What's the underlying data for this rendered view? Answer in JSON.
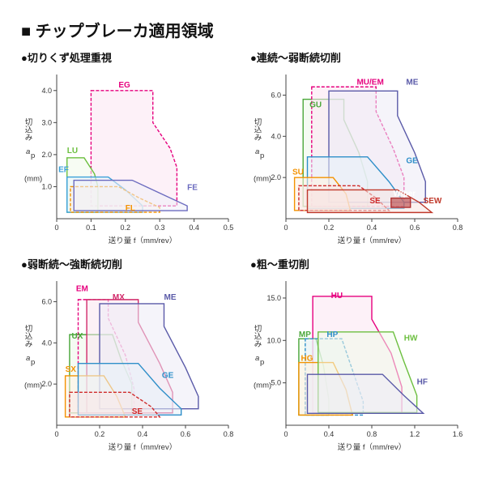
{
  "title": "■ チップブレーカ適用領域",
  "shared": {
    "xlabel": "送り量 f（mm/rev）",
    "ylabel_a": "切込み",
    "ylabel_b": "aₚ",
    "ylabel_c": "(mm)",
    "axis_color": "#444444",
    "tick_fontsize": 9
  },
  "panels": [
    {
      "key": "p1",
      "title": "●切りくず処理重視",
      "xlim": [
        0,
        0.5
      ],
      "xticks": [
        0,
        0.1,
        0.2,
        0.3,
        0.4,
        0.5
      ],
      "ylim": [
        0,
        4.5
      ],
      "yticks": [
        1.0,
        2.0,
        3.0,
        4.0
      ],
      "regions": [
        {
          "id": "EG",
          "label": "EG",
          "color": "#e6007e",
          "fill": "#fbe6f2",
          "dash": "4 2",
          "poly": [
            [
              0.1,
              4.0
            ],
            [
              0.28,
              4.0
            ],
            [
              0.28,
              3.0
            ],
            [
              0.33,
              2.2
            ],
            [
              0.35,
              1.6
            ],
            [
              0.35,
              0.4
            ],
            [
              0.1,
              0.4
            ]
          ],
          "lx": 0.18,
          "ly": 4.1
        },
        {
          "id": "LU",
          "label": "LU",
          "color": "#6cbf3f",
          "fill": "#f0f9ea",
          "dash": "none",
          "poly": [
            [
              0.03,
              1.9
            ],
            [
              0.08,
              1.9
            ],
            [
              0.11,
              1.4
            ],
            [
              0.12,
              1.0
            ],
            [
              0.12,
              0.2
            ],
            [
              0.03,
              0.2
            ]
          ],
          "lx": 0.03,
          "ly": 2.05
        },
        {
          "id": "EF",
          "label": "EF",
          "color": "#3aa0d8",
          "fill": "#e9f5fb",
          "dash": "none",
          "poly": [
            [
              0.03,
              1.3
            ],
            [
              0.15,
              1.3
            ],
            [
              0.2,
              0.9
            ],
            [
              0.25,
              0.4
            ],
            [
              0.25,
              0.2
            ],
            [
              0.03,
              0.2
            ]
          ],
          "lx": 0.005,
          "ly": 1.45
        },
        {
          "id": "FL",
          "label": "FL",
          "color": "#f39200",
          "fill": "#fff4e5",
          "dash": "4 2",
          "poly": [
            [
              0.04,
              1.0
            ],
            [
              0.18,
              1.0
            ],
            [
              0.24,
              0.65
            ],
            [
              0.3,
              0.35
            ],
            [
              0.3,
              0.2
            ],
            [
              0.04,
              0.2
            ]
          ],
          "lx": 0.2,
          "ly": 0.25
        },
        {
          "id": "FE",
          "label": "FE",
          "color": "#6b6bbf",
          "fill": "#eeeef8",
          "dash": "none",
          "poly": [
            [
              0.05,
              1.2
            ],
            [
              0.22,
              1.2
            ],
            [
              0.3,
              0.8
            ],
            [
              0.38,
              0.4
            ],
            [
              0.38,
              0.25
            ],
            [
              0.05,
              0.25
            ]
          ],
          "lx": 0.38,
          "ly": 0.9
        }
      ]
    },
    {
      "key": "p2",
      "title": "●連続～弱断続切削",
      "xlim": [
        0,
        0.8
      ],
      "xticks": [
        0,
        0.2,
        0.4,
        0.6,
        0.8
      ],
      "ylim": [
        0,
        7.0
      ],
      "yticks": [
        2.0,
        4.0,
        6.0
      ],
      "regions": [
        {
          "id": "GU",
          "label": "GU",
          "color": "#4aa73a",
          "fill": "#edf7ea",
          "dash": "none",
          "poly": [
            [
              0.08,
              5.8
            ],
            [
              0.27,
              5.8
            ],
            [
              0.27,
              4.8
            ],
            [
              0.34,
              3.2
            ],
            [
              0.38,
              1.8
            ],
            [
              0.38,
              0.6
            ],
            [
              0.08,
              0.6
            ]
          ],
          "lx": 0.11,
          "ly": 5.4
        },
        {
          "id": "MUEM",
          "label": "MU/EM",
          "color": "#e6007e",
          "fill": "#fbe6f2",
          "dash": "4 2",
          "poly": [
            [
              0.12,
              6.4
            ],
            [
              0.42,
              6.4
            ],
            [
              0.42,
              5.2
            ],
            [
              0.5,
              3.4
            ],
            [
              0.55,
              2.0
            ],
            [
              0.55,
              0.6
            ],
            [
              0.12,
              0.6
            ]
          ],
          "lx": 0.33,
          "ly": 6.5
        },
        {
          "id": "ME",
          "label": "ME",
          "color": "#5a5aa8",
          "fill": "#ecebf5",
          "dash": "none",
          "poly": [
            [
              0.2,
              6.2
            ],
            [
              0.52,
              6.2
            ],
            [
              0.52,
              5.0
            ],
            [
              0.6,
              3.2
            ],
            [
              0.65,
              1.8
            ],
            [
              0.65,
              0.8
            ],
            [
              0.2,
              0.8
            ]
          ],
          "lx": 0.56,
          "ly": 6.5
        },
        {
          "id": "GE",
          "label": "GE",
          "color": "#2f8fc9",
          "fill": "#e7f3fa",
          "dash": "none",
          "poly": [
            [
              0.1,
              3.0
            ],
            [
              0.38,
              3.0
            ],
            [
              0.48,
              1.8
            ],
            [
              0.55,
              0.8
            ],
            [
              0.55,
              0.5
            ],
            [
              0.1,
              0.5
            ]
          ],
          "lx": 0.56,
          "ly": 2.7
        },
        {
          "id": "SU",
          "label": "SU",
          "color": "#f39200",
          "fill": "#fff3e1",
          "dash": "none",
          "poly": [
            [
              0.04,
              2.0
            ],
            [
              0.22,
              2.0
            ],
            [
              0.28,
              1.2
            ],
            [
              0.3,
              0.4
            ],
            [
              0.04,
              0.4
            ]
          ],
          "lx": 0.03,
          "ly": 2.15
        },
        {
          "id": "SE",
          "label": "SE",
          "color": "#cf2a2a",
          "fill": "#fae7e7",
          "dash": "4 2",
          "poly": [
            [
              0.06,
              1.6
            ],
            [
              0.34,
              1.6
            ],
            [
              0.42,
              1.0
            ],
            [
              0.48,
              0.4
            ],
            [
              0.06,
              0.4
            ]
          ],
          "lx": 0.39,
          "ly": 0.75
        },
        {
          "id": "SEW",
          "label": "SEW",
          "color": "#c0392b",
          "fill": "#f8e5e2",
          "dash": "none",
          "poly": [
            [
              0.1,
              1.4
            ],
            [
              0.52,
              1.4
            ],
            [
              0.62,
              0.8
            ],
            [
              0.68,
              0.3
            ],
            [
              0.1,
              0.3
            ]
          ],
          "lx": 0.64,
          "ly": 0.75
        },
        {
          "id": "WP",
          "label": "Wiper",
          "color": "#b03030",
          "fill": "#b03030",
          "dash": "none",
          "poly": [
            [
              0.49,
              1.0
            ],
            [
              0.58,
              1.0
            ],
            [
              0.58,
              0.55
            ],
            [
              0.49,
              0.55
            ]
          ],
          "lx": 0.5,
          "ly": 1.1,
          "textfill": "#ffffff"
        }
      ]
    },
    {
      "key": "p3",
      "title": "●弱断続～強断続切削",
      "xlim": [
        0,
        0.8
      ],
      "xticks": [
        0,
        0.2,
        0.4,
        0.6,
        0.8
      ],
      "ylim": [
        0,
        7.0
      ],
      "yticks": [
        2.0,
        4.0,
        6.0
      ],
      "regions": [
        {
          "id": "UX",
          "label": "UX",
          "color": "#4aa73a",
          "fill": "#edf7ea",
          "dash": "none",
          "poly": [
            [
              0.06,
              4.4
            ],
            [
              0.26,
              4.4
            ],
            [
              0.3,
              3.2
            ],
            [
              0.35,
              2.0
            ],
            [
              0.35,
              0.6
            ],
            [
              0.06,
              0.6
            ]
          ],
          "lx": 0.07,
          "ly": 4.2
        },
        {
          "id": "EM",
          "label": "EM",
          "color": "#e6007e",
          "fill": "none",
          "dash": "4 2",
          "poly": [
            [
              0.1,
              6.1
            ],
            [
              0.24,
              6.1
            ],
            [
              0.24,
              5.2
            ],
            [
              0.32,
              3.4
            ],
            [
              0.36,
              1.8
            ],
            [
              0.36,
              0.6
            ],
            [
              0.1,
              0.6
            ]
          ],
          "lx": 0.09,
          "ly": 6.5
        },
        {
          "id": "MX",
          "label": "MX",
          "color": "#d12a6a",
          "fill": "#fae6ee",
          "dash": "none",
          "poly": [
            [
              0.14,
              6.1
            ],
            [
              0.38,
              6.1
            ],
            [
              0.38,
              5.0
            ],
            [
              0.48,
              3.0
            ],
            [
              0.54,
              1.6
            ],
            [
              0.54,
              0.6
            ],
            [
              0.14,
              0.6
            ]
          ],
          "lx": 0.26,
          "ly": 6.1
        },
        {
          "id": "ME2",
          "label": "ME",
          "color": "#5a5aa8",
          "fill": "#ecebf5",
          "dash": "none",
          "poly": [
            [
              0.2,
              5.9
            ],
            [
              0.5,
              5.9
            ],
            [
              0.5,
              4.8
            ],
            [
              0.6,
              2.8
            ],
            [
              0.66,
              1.4
            ],
            [
              0.66,
              0.8
            ],
            [
              0.2,
              0.8
            ]
          ],
          "lx": 0.5,
          "ly": 6.1
        },
        {
          "id": "SX",
          "label": "SX",
          "color": "#f39200",
          "fill": "#fff3e1",
          "dash": "none",
          "poly": [
            [
              0.04,
              2.4
            ],
            [
              0.22,
              2.4
            ],
            [
              0.28,
              1.4
            ],
            [
              0.32,
              0.4
            ],
            [
              0.04,
              0.4
            ]
          ],
          "lx": 0.04,
          "ly": 2.6
        },
        {
          "id": "GE2",
          "label": "GE",
          "color": "#2f8fc9",
          "fill": "#e7f3fa",
          "dash": "none",
          "poly": [
            [
              0.1,
              3.0
            ],
            [
              0.38,
              3.0
            ],
            [
              0.48,
              1.8
            ],
            [
              0.58,
              0.8
            ],
            [
              0.58,
              0.5
            ],
            [
              0.1,
              0.5
            ]
          ],
          "lx": 0.49,
          "ly": 2.3
        },
        {
          "id": "SE2",
          "label": "SE",
          "color": "#cf2a2a",
          "fill": "#fae7e7",
          "dash": "4 2",
          "poly": [
            [
              0.06,
              1.6
            ],
            [
              0.34,
              1.6
            ],
            [
              0.44,
              0.9
            ],
            [
              0.48,
              0.4
            ],
            [
              0.06,
              0.4
            ]
          ],
          "lx": 0.35,
          "ly": 0.55
        }
      ]
    },
    {
      "key": "p4",
      "title": "●粗～重切削",
      "xlim": [
        0,
        1.6
      ],
      "xticks": [
        0,
        0.4,
        0.8,
        1.2,
        1.6
      ],
      "ylim": [
        0,
        17.0
      ],
      "yticks": [
        5.0,
        10.0,
        15.0
      ],
      "regions": [
        {
          "id": "HU",
          "label": "HU",
          "color": "#e6007e",
          "fill": "#fbe6f2",
          "dash": "none",
          "poly": [
            [
              0.25,
              15.2
            ],
            [
              0.8,
              15.2
            ],
            [
              0.8,
              12.5
            ],
            [
              0.98,
              8.5
            ],
            [
              1.08,
              4.5
            ],
            [
              1.08,
              1.5
            ],
            [
              0.25,
              1.5
            ]
          ],
          "lx": 0.42,
          "ly": 15.0
        },
        {
          "id": "MP",
          "label": "MP",
          "color": "#4aa73a",
          "fill": "#edf7ea",
          "dash": "none",
          "poly": [
            [
              0.12,
              10.2
            ],
            [
              0.28,
              10.2
            ],
            [
              0.35,
              7.0
            ],
            [
              0.4,
              3.0
            ],
            [
              0.4,
              1.2
            ],
            [
              0.12,
              1.2
            ]
          ],
          "lx": 0.12,
          "ly": 10.4
        },
        {
          "id": "HP",
          "label": "HP",
          "color": "#2f8fc9",
          "fill": "#e7f3fa",
          "dash": "4 2",
          "poly": [
            [
              0.18,
              10.2
            ],
            [
              0.52,
              10.2
            ],
            [
              0.62,
              6.5
            ],
            [
              0.72,
              2.8
            ],
            [
              0.72,
              1.2
            ],
            [
              0.18,
              1.2
            ]
          ],
          "lx": 0.38,
          "ly": 10.4
        },
        {
          "id": "HG",
          "label": "HG",
          "color": "#f39200",
          "fill": "#fff3e1",
          "dash": "none",
          "poly": [
            [
              0.12,
              7.4
            ],
            [
              0.44,
              7.4
            ],
            [
              0.56,
              4.2
            ],
            [
              0.62,
              1.2
            ],
            [
              0.12,
              1.2
            ]
          ],
          "lx": 0.14,
          "ly": 7.6
        },
        {
          "id": "HW",
          "label": "HW",
          "color": "#6cbf3f",
          "fill": "#f0f9ea",
          "dash": "none",
          "poly": [
            [
              0.3,
              11.0
            ],
            [
              1.0,
              11.0
            ],
            [
              1.1,
              7.5
            ],
            [
              1.22,
              3.5
            ],
            [
              1.22,
              1.5
            ],
            [
              0.3,
              1.5
            ]
          ],
          "lx": 1.1,
          "ly": 10.0
        },
        {
          "id": "HF",
          "label": "HF",
          "color": "#5a5aa8",
          "fill": "#ecebf5",
          "dash": "none",
          "poly": [
            [
              0.2,
              6.0
            ],
            [
              0.9,
              6.0
            ],
            [
              1.1,
              3.5
            ],
            [
              1.28,
              1.4
            ],
            [
              0.2,
              1.4
            ]
          ],
          "lx": 1.22,
          "ly": 4.8
        }
      ]
    }
  ]
}
